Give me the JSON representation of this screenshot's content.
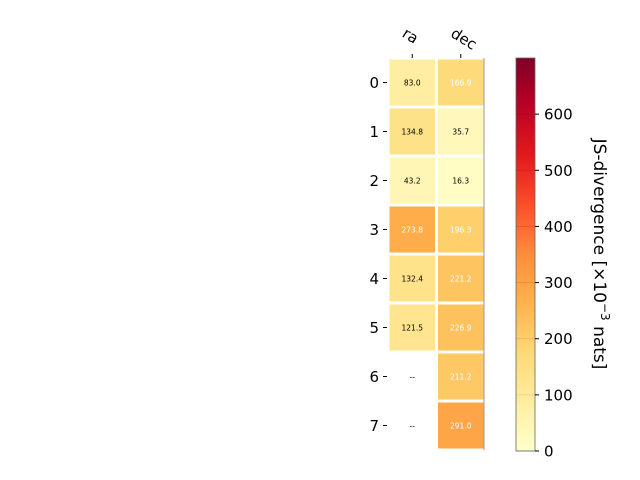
{
  "chart_data": {
    "type": "heatmap",
    "columns": [
      "ra",
      "dec"
    ],
    "rows": [
      "0",
      "1",
      "2",
      "3",
      "4",
      "5",
      "6",
      "7"
    ],
    "values": [
      [
        83.0,
        166.9
      ],
      [
        134.8,
        35.7
      ],
      [
        43.2,
        16.3
      ],
      [
        273.8,
        196.3
      ],
      [
        132.4,
        221.2
      ],
      [
        121.5,
        226.9
      ],
      [
        null,
        211.2
      ],
      [
        null,
        291.0
      ]
    ],
    "cell_labels": [
      [
        "83.0",
        "166.9"
      ],
      [
        "134.8",
        "35.7"
      ],
      [
        "43.2",
        "16.3"
      ],
      [
        "273.8",
        "196.3"
      ],
      [
        "132.4",
        "221.2"
      ],
      [
        "121.5",
        "226.9"
      ],
      [
        "--",
        "211.2"
      ],
      [
        "--",
        "291.0"
      ]
    ],
    "colorbar": {
      "label_main": "JS-divergence [×10",
      "label_sup": "−3",
      "label_tail": " nats]",
      "range": [
        0,
        700
      ],
      "ticks": [
        "0",
        "100",
        "200",
        "300",
        "400",
        "500",
        "600"
      ],
      "colormap": "YlOrRd"
    }
  }
}
